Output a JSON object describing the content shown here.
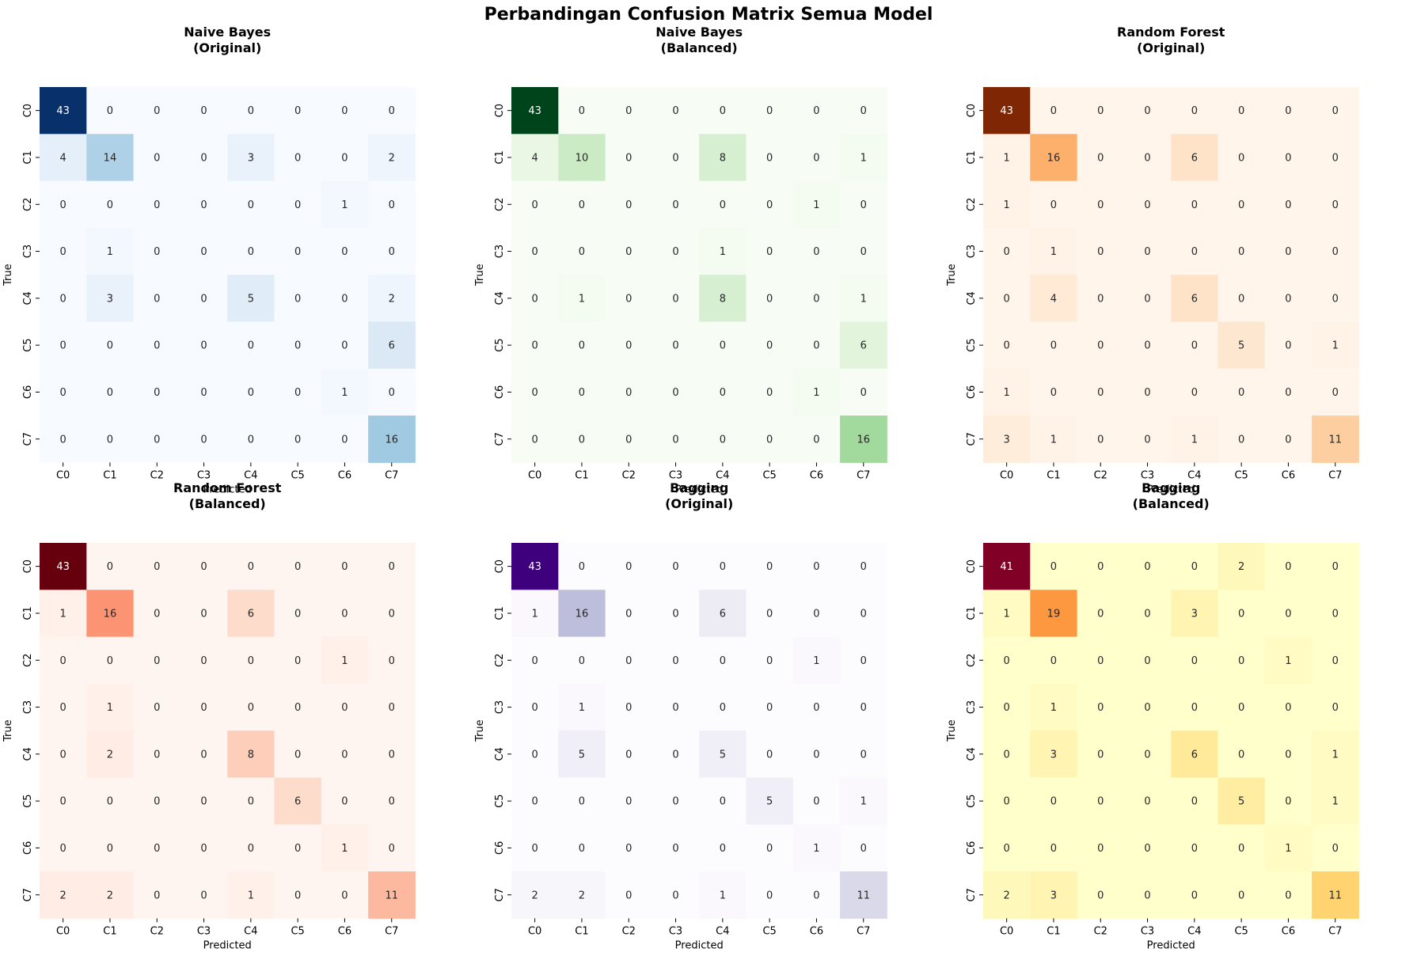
{
  "figure": {
    "title": "Perbandingan Confusion Matrix Semua Model"
  },
  "chart_data": [
    {
      "type": "heatmap",
      "title": [
        "Naive Bayes",
        "(Original)"
      ],
      "xlabel": "Predicted",
      "ylabel": "True",
      "x_categories": [
        "C0",
        "C1",
        "C2",
        "C3",
        "C4",
        "C5",
        "C6",
        "C7"
      ],
      "y_categories": [
        "C0",
        "C1",
        "C2",
        "C3",
        "C4",
        "C5",
        "C6",
        "C7"
      ],
      "colormap": "Blues",
      "palette": [
        "#f7fbff",
        "#deebf7",
        "#c6dbef",
        "#9ecae1",
        "#6baed6",
        "#4292c6",
        "#2171b5",
        "#08519c",
        "#08306b"
      ],
      "values": [
        [
          43,
          0,
          0,
          0,
          0,
          0,
          0,
          0
        ],
        [
          4,
          14,
          0,
          0,
          3,
          0,
          0,
          2
        ],
        [
          0,
          0,
          0,
          0,
          0,
          0,
          1,
          0
        ],
        [
          0,
          1,
          0,
          0,
          0,
          0,
          0,
          0
        ],
        [
          0,
          3,
          0,
          0,
          5,
          0,
          0,
          2
        ],
        [
          0,
          0,
          0,
          0,
          0,
          0,
          0,
          6
        ],
        [
          0,
          0,
          0,
          0,
          0,
          0,
          1,
          0
        ],
        [
          0,
          0,
          0,
          0,
          0,
          0,
          0,
          16
        ]
      ]
    },
    {
      "type": "heatmap",
      "title": [
        "Naive Bayes",
        "(Balanced)"
      ],
      "xlabel": "Predicted",
      "ylabel": "True",
      "x_categories": [
        "C0",
        "C1",
        "C2",
        "C3",
        "C4",
        "C5",
        "C6",
        "C7"
      ],
      "y_categories": [
        "C0",
        "C1",
        "C2",
        "C3",
        "C4",
        "C5",
        "C6",
        "C7"
      ],
      "colormap": "Greens",
      "palette": [
        "#f7fcf5",
        "#e5f5e0",
        "#c7e9c0",
        "#a1d99b",
        "#74c476",
        "#41ab5d",
        "#238b45",
        "#006d2c",
        "#00441b"
      ],
      "values": [
        [
          43,
          0,
          0,
          0,
          0,
          0,
          0,
          0
        ],
        [
          4,
          10,
          0,
          0,
          8,
          0,
          0,
          1
        ],
        [
          0,
          0,
          0,
          0,
          0,
          0,
          1,
          0
        ],
        [
          0,
          0,
          0,
          0,
          1,
          0,
          0,
          0
        ],
        [
          0,
          1,
          0,
          0,
          8,
          0,
          0,
          1
        ],
        [
          0,
          0,
          0,
          0,
          0,
          0,
          0,
          6
        ],
        [
          0,
          0,
          0,
          0,
          0,
          0,
          1,
          0
        ],
        [
          0,
          0,
          0,
          0,
          0,
          0,
          0,
          16
        ]
      ]
    },
    {
      "type": "heatmap",
      "title": [
        "Random Forest",
        "(Original)"
      ],
      "xlabel": "Predicted",
      "ylabel": "True",
      "x_categories": [
        "C0",
        "C1",
        "C2",
        "C3",
        "C4",
        "C5",
        "C6",
        "C7"
      ],
      "y_categories": [
        "C0",
        "C1",
        "C2",
        "C3",
        "C4",
        "C5",
        "C6",
        "C7"
      ],
      "colormap": "Oranges",
      "palette": [
        "#fff5eb",
        "#fee6ce",
        "#fdd0a2",
        "#fdae6b",
        "#fd8d3c",
        "#f16913",
        "#d94801",
        "#a63603",
        "#7f2704"
      ],
      "values": [
        [
          43,
          0,
          0,
          0,
          0,
          0,
          0,
          0
        ],
        [
          1,
          16,
          0,
          0,
          6,
          0,
          0,
          0
        ],
        [
          1,
          0,
          0,
          0,
          0,
          0,
          0,
          0
        ],
        [
          0,
          1,
          0,
          0,
          0,
          0,
          0,
          0
        ],
        [
          0,
          4,
          0,
          0,
          6,
          0,
          0,
          0
        ],
        [
          0,
          0,
          0,
          0,
          0,
          5,
          0,
          1
        ],
        [
          1,
          0,
          0,
          0,
          0,
          0,
          0,
          0
        ],
        [
          3,
          1,
          0,
          0,
          1,
          0,
          0,
          11
        ]
      ]
    },
    {
      "type": "heatmap",
      "title": [
        "Random Forest",
        "(Balanced)"
      ],
      "xlabel": "Predicted",
      "ylabel": "True",
      "x_categories": [
        "C0",
        "C1",
        "C2",
        "C3",
        "C4",
        "C5",
        "C6",
        "C7"
      ],
      "y_categories": [
        "C0",
        "C1",
        "C2",
        "C3",
        "C4",
        "C5",
        "C6",
        "C7"
      ],
      "colormap": "Reds",
      "palette": [
        "#fff5f0",
        "#fee0d2",
        "#fcbba1",
        "#fc9272",
        "#fb6a4a",
        "#ef3b2c",
        "#cb181d",
        "#a50f15",
        "#67000d"
      ],
      "values": [
        [
          43,
          0,
          0,
          0,
          0,
          0,
          0,
          0
        ],
        [
          1,
          16,
          0,
          0,
          6,
          0,
          0,
          0
        ],
        [
          0,
          0,
          0,
          0,
          0,
          0,
          1,
          0
        ],
        [
          0,
          1,
          0,
          0,
          0,
          0,
          0,
          0
        ],
        [
          0,
          2,
          0,
          0,
          8,
          0,
          0,
          0
        ],
        [
          0,
          0,
          0,
          0,
          0,
          6,
          0,
          0
        ],
        [
          0,
          0,
          0,
          0,
          0,
          0,
          1,
          0
        ],
        [
          2,
          2,
          0,
          0,
          1,
          0,
          0,
          11
        ]
      ]
    },
    {
      "type": "heatmap",
      "title": [
        "Bagging",
        "(Original)"
      ],
      "xlabel": "Predicted",
      "ylabel": "True",
      "x_categories": [
        "C0",
        "C1",
        "C2",
        "C3",
        "C4",
        "C5",
        "C6",
        "C7"
      ],
      "y_categories": [
        "C0",
        "C1",
        "C2",
        "C3",
        "C4",
        "C5",
        "C6",
        "C7"
      ],
      "colormap": "Purples",
      "palette": [
        "#fcfbfd",
        "#efedf5",
        "#dadaeb",
        "#bcbddc",
        "#9e9ac8",
        "#807dba",
        "#6a51a3",
        "#54278f",
        "#3f007d"
      ],
      "values": [
        [
          43,
          0,
          0,
          0,
          0,
          0,
          0,
          0
        ],
        [
          1,
          16,
          0,
          0,
          6,
          0,
          0,
          0
        ],
        [
          0,
          0,
          0,
          0,
          0,
          0,
          1,
          0
        ],
        [
          0,
          1,
          0,
          0,
          0,
          0,
          0,
          0
        ],
        [
          0,
          5,
          0,
          0,
          5,
          0,
          0,
          0
        ],
        [
          0,
          0,
          0,
          0,
          0,
          5,
          0,
          1
        ],
        [
          0,
          0,
          0,
          0,
          0,
          0,
          1,
          0
        ],
        [
          2,
          2,
          0,
          0,
          1,
          0,
          0,
          11
        ]
      ]
    },
    {
      "type": "heatmap",
      "title": [
        "Bagging",
        "(Balanced)"
      ],
      "xlabel": "Predicted",
      "ylabel": "True",
      "x_categories": [
        "C0",
        "C1",
        "C2",
        "C3",
        "C4",
        "C5",
        "C6",
        "C7"
      ],
      "y_categories": [
        "C0",
        "C1",
        "C2",
        "C3",
        "C4",
        "C5",
        "C6",
        "C7"
      ],
      "colormap": "YlOrRd",
      "palette": [
        "#ffffcc",
        "#ffeda0",
        "#fed976",
        "#feb24c",
        "#fd8d3c",
        "#fc4e2a",
        "#e31a1c",
        "#bd0026",
        "#800026"
      ],
      "values": [
        [
          41,
          0,
          0,
          0,
          0,
          2,
          0,
          0
        ],
        [
          1,
          19,
          0,
          0,
          3,
          0,
          0,
          0
        ],
        [
          0,
          0,
          0,
          0,
          0,
          0,
          1,
          0
        ],
        [
          0,
          1,
          0,
          0,
          0,
          0,
          0,
          0
        ],
        [
          0,
          3,
          0,
          0,
          6,
          0,
          0,
          1
        ],
        [
          0,
          0,
          0,
          0,
          0,
          5,
          0,
          1
        ],
        [
          0,
          0,
          0,
          0,
          0,
          0,
          1,
          0
        ],
        [
          2,
          3,
          0,
          0,
          0,
          0,
          0,
          11
        ]
      ]
    }
  ]
}
